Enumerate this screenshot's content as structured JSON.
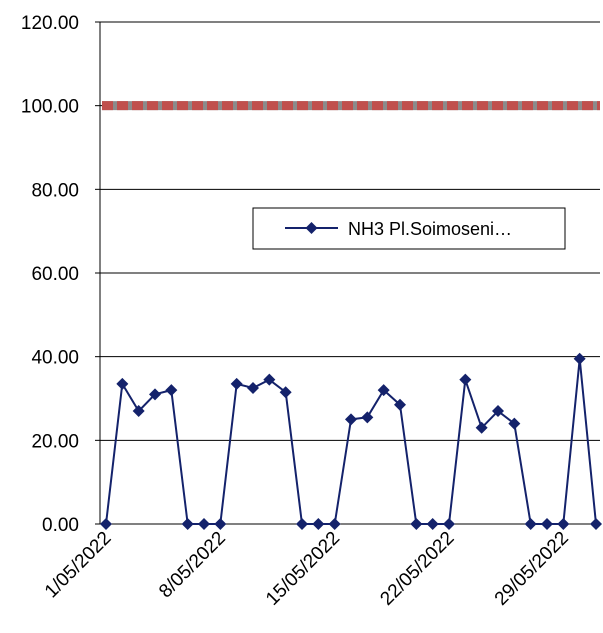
{
  "chart_data": {
    "type": "line",
    "title": "",
    "xlabel": "",
    "ylabel": "",
    "ylim": [
      0,
      120
    ],
    "y_ticks": [
      "0.00",
      "20.00",
      "40.00",
      "60.00",
      "80.00",
      "100.00",
      "120.00"
    ],
    "x_tick_labels": [
      "1/05/2022",
      "8/05/2022",
      "15/05/2022",
      "22/05/2022",
      "29/05/2022"
    ],
    "x": [
      "1/05/2022",
      "2/05/2022",
      "3/05/2022",
      "4/05/2022",
      "5/05/2022",
      "6/05/2022",
      "7/05/2022",
      "8/05/2022",
      "9/05/2022",
      "10/05/2022",
      "11/05/2022",
      "12/05/2022",
      "13/05/2022",
      "14/05/2022",
      "15/05/2022",
      "16/05/2022",
      "17/05/2022",
      "18/05/2022",
      "19/05/2022",
      "20/05/2022",
      "21/05/2022",
      "22/05/2022",
      "23/05/2022",
      "24/05/2022",
      "25/05/2022",
      "26/05/2022",
      "27/05/2022",
      "28/05/2022",
      "29/05/2022",
      "30/05/2022",
      "31/05/2022"
    ],
    "series": [
      {
        "name": "NH3 Pl.Soimoseni…",
        "color": "#14226b",
        "marker": "diamond",
        "values": [
          0,
          33.5,
          27,
          31,
          32,
          0,
          0,
          0,
          33.5,
          32.5,
          34.5,
          31.5,
          0,
          0,
          0,
          25,
          25.5,
          32,
          28.5,
          0,
          0,
          0,
          34.5,
          23,
          27,
          24,
          0,
          0,
          0,
          39.5,
          0
        ]
      }
    ],
    "limit_line": {
      "value": 100,
      "color": "#c0504d",
      "style": "dashed"
    },
    "legend_position": "center-right",
    "grid": "horizontal"
  }
}
